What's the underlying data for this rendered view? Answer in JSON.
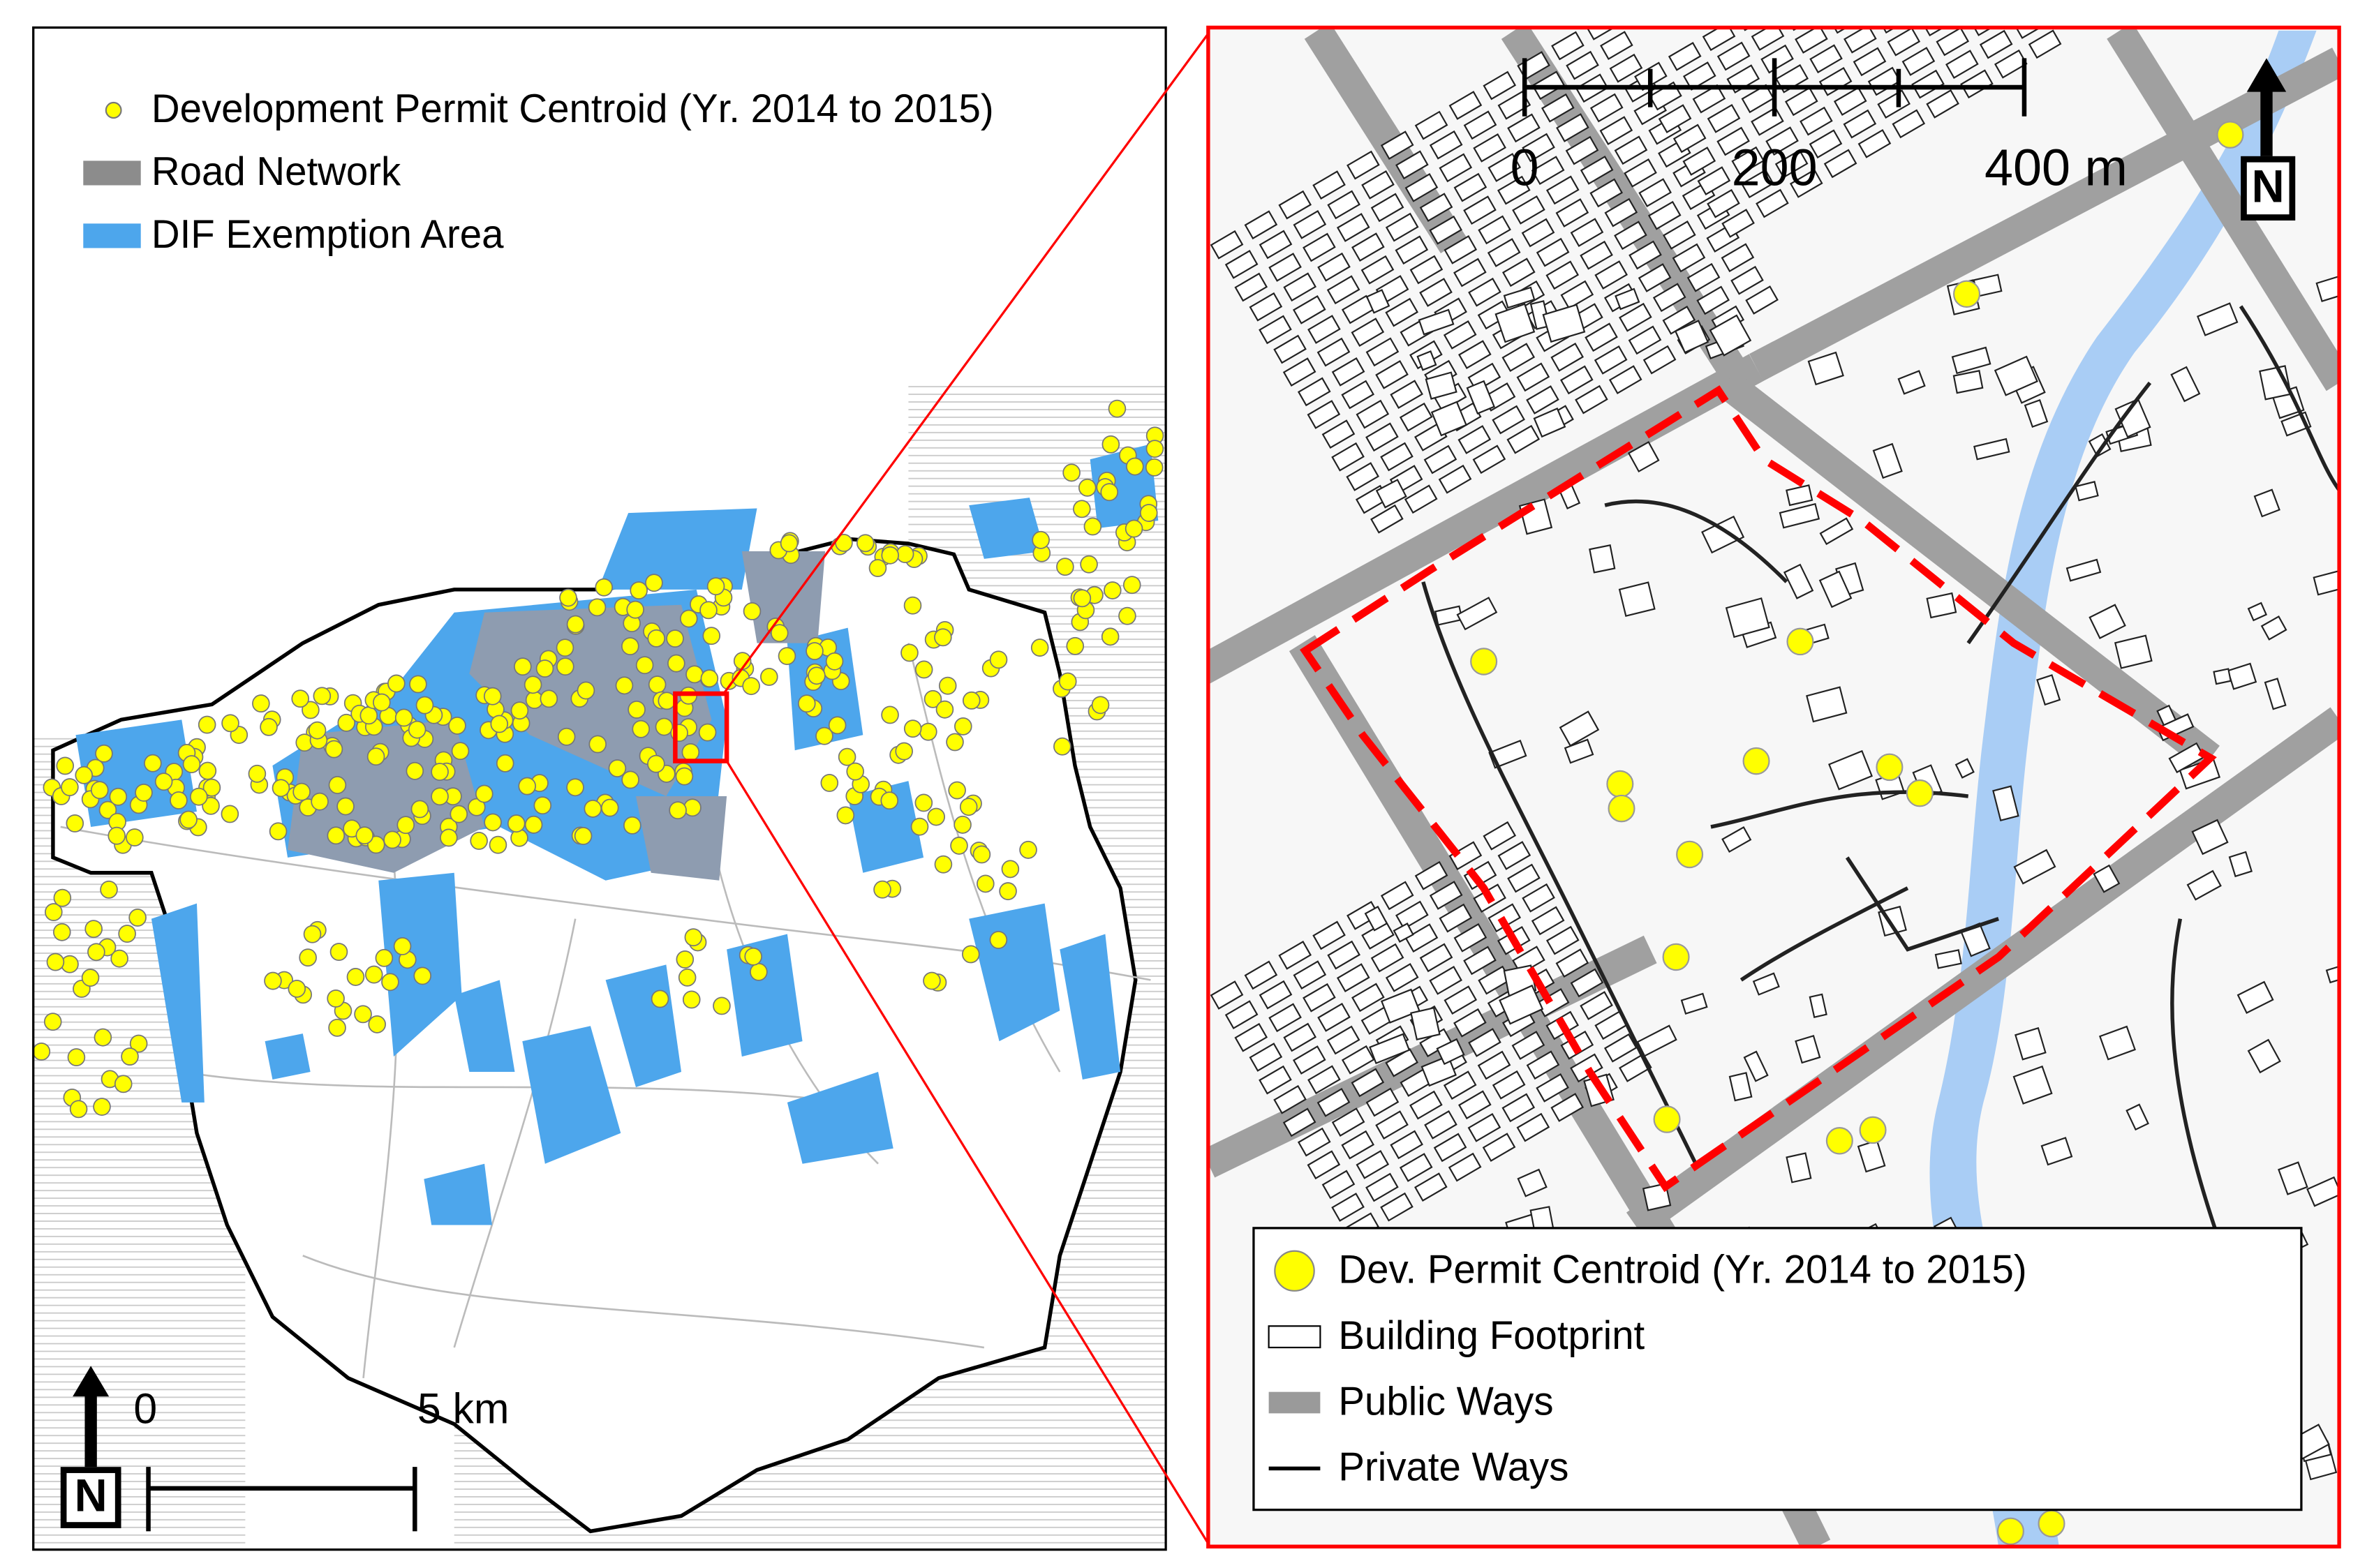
{
  "left_map": {
    "legend": [
      "Development Permit Centroid (Yr. 2014 to 2015)",
      "Road Network",
      "DIF Exemption Area"
    ],
    "scale_bar": [
      "0",
      "5 km"
    ],
    "north": "N"
  },
  "right_map": {
    "scale_bar": [
      "0",
      "200",
      "400 m"
    ],
    "north": "N",
    "legend": [
      "Dev. Permit Centroid (Yr. 2014 to 2015)",
      "Building Footprint",
      "Public Ways",
      "Private Ways"
    ]
  }
}
